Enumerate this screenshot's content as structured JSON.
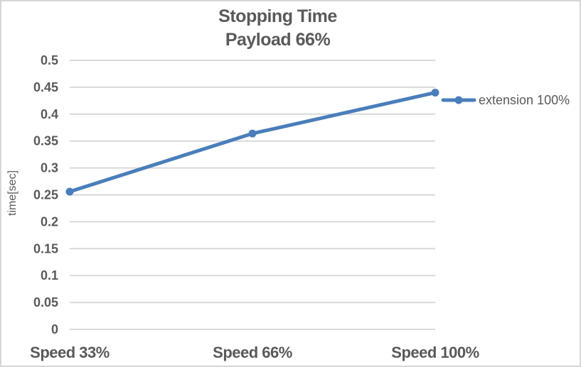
{
  "chart_data": {
    "type": "line",
    "title": "Stopping Time",
    "subtitle": "Payload 66%",
    "categories": [
      "Speed 33%",
      "Speed 66%",
      "Speed 100%"
    ],
    "series": [
      {
        "name": "extension 100%",
        "values": [
          0.256,
          0.364,
          0.44
        ]
      }
    ],
    "xlabel": "",
    "ylabel": "time[sec]",
    "ylim": [
      0,
      0.5
    ],
    "ytick_labels": [
      "0",
      "0.05",
      "0.1",
      "0.15",
      "0.2",
      "0.25",
      "0.3",
      "0.35",
      "0.4",
      "0.45",
      "0.5"
    ],
    "grid": true,
    "legend_position": "right-top",
    "marker": "circle",
    "colors": {
      "series": "#4A7EBB",
      "text": "#595959",
      "gridline": "#D9D9D9",
      "border": "#D6D6D6",
      "background": "#FFFFFF"
    }
  }
}
